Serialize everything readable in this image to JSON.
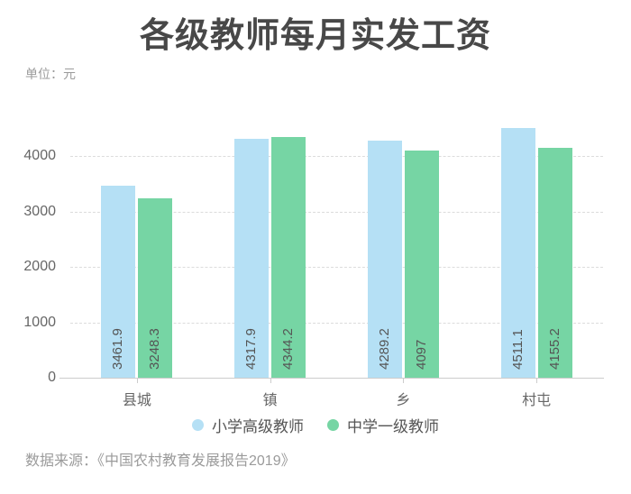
{
  "header": {
    "title": "各级教师每月实发工资",
    "unit_label": "单位：元"
  },
  "footer": {
    "source": "数据来源：《中国农村教育发展报告2019》"
  },
  "chart_data": {
    "type": "bar",
    "title": "各级教师每月实发工资",
    "unit": "元",
    "categories": [
      "县城",
      "镇",
      "乡",
      "村屯"
    ],
    "series": [
      {
        "name": "小学高级教师",
        "color": "#b5e0f5",
        "values": [
          3461.9,
          4317.9,
          4289.2,
          4511.1
        ]
      },
      {
        "name": "中学一级教师",
        "color": "#76d5a4",
        "values": [
          3248.3,
          4344.2,
          4097,
          4155.2
        ]
      }
    ],
    "yticks": [
      0,
      1000,
      2000,
      3000,
      4000
    ],
    "ylim": [
      0,
      4600
    ],
    "xlabel": "",
    "ylabel": "",
    "grid": "horizontal dashed gridlines",
    "legend_position": "bottom",
    "value_label_style": "rotated 90deg, dark gray, inside bar near bottom",
    "axis_color": "#cccccc",
    "tick_label_color": "#666666",
    "source": "数据来源：《中国农村教育发展报告2019》"
  }
}
